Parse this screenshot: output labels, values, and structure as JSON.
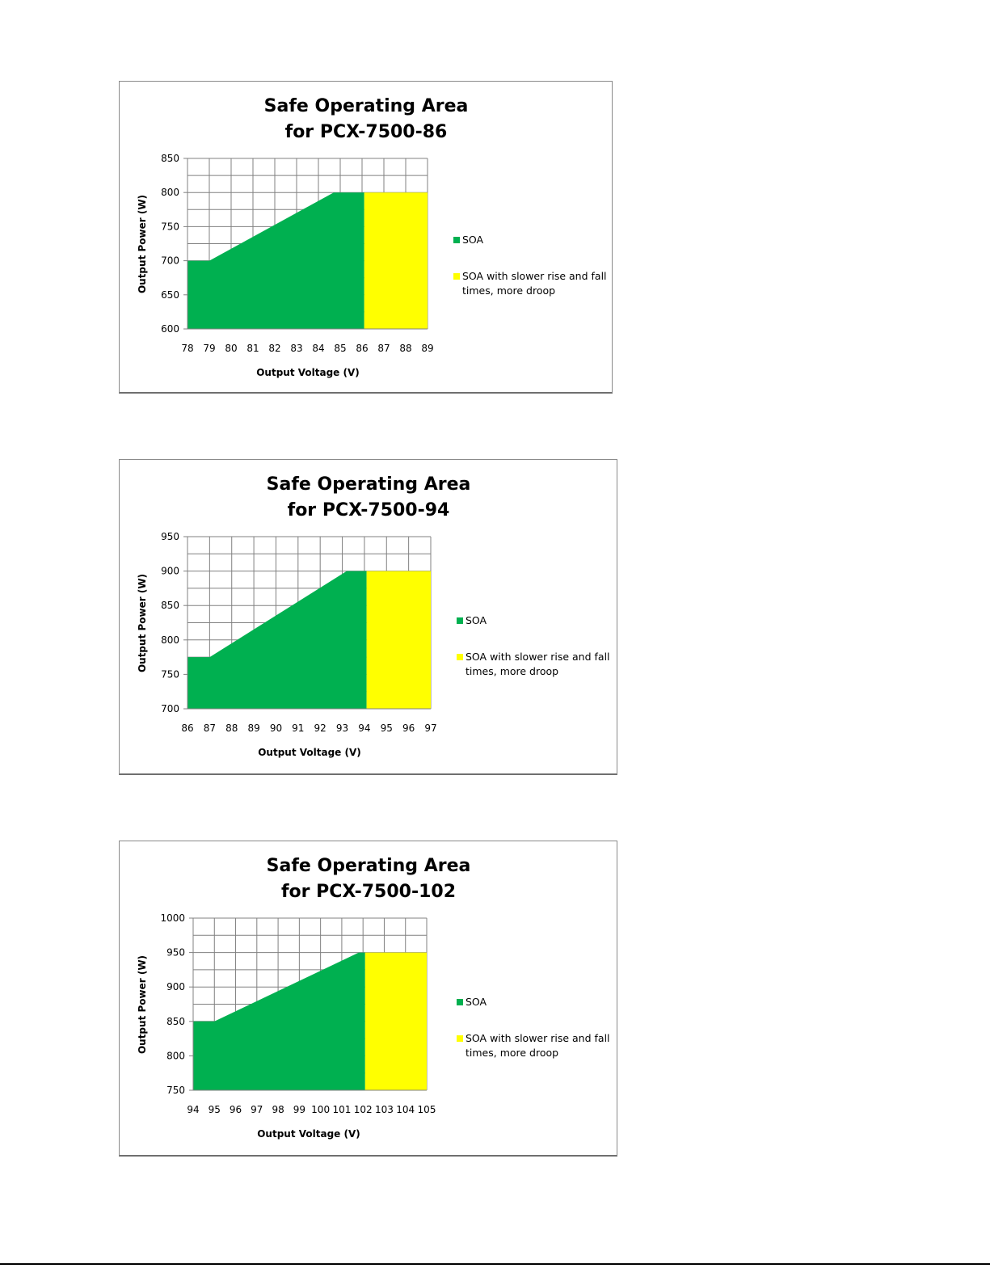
{
  "chart_data": [
    {
      "type": "area",
      "title": [
        "Safe Operating Area",
        "for PCX-7500-86"
      ],
      "xlabel": "Output Voltage  (V)",
      "ylabel": "Output Power  (W)",
      "xlim": [
        78,
        89
      ],
      "ylim": [
        600,
        850
      ],
      "xticks": [
        78,
        79,
        80,
        81,
        82,
        83,
        84,
        85,
        86,
        87,
        88,
        89
      ],
      "yticks": [
        600,
        650,
        700,
        750,
        800,
        850
      ],
      "grid": true,
      "legend_position": "right",
      "series": [
        {
          "name": "SOA",
          "color": "#00b050",
          "x": [
            78,
            79,
            84.7,
            86.1
          ],
          "y": [
            700,
            700,
            800,
            800
          ]
        },
        {
          "name": "SOA with slower rise and fall times, more droop",
          "color": "#ffff00",
          "x": [
            86.1,
            89
          ],
          "y": [
            800,
            800
          ]
        }
      ]
    },
    {
      "type": "area",
      "title": [
        "Safe Operating Area",
        "for PCX-7500-94"
      ],
      "xlabel": "Output Voltage  (V)",
      "ylabel": "Output Power  (W)",
      "xlim": [
        86,
        97
      ],
      "ylim": [
        700,
        950
      ],
      "xticks": [
        86,
        87,
        88,
        89,
        90,
        91,
        92,
        93,
        94,
        95,
        96,
        97
      ],
      "yticks": [
        700,
        750,
        800,
        850,
        900,
        950
      ],
      "grid": true,
      "legend_position": "right",
      "series": [
        {
          "name": "SOA",
          "color": "#00b050",
          "x": [
            86,
            87,
            93.2,
            94.1
          ],
          "y": [
            775,
            775,
            900,
            900
          ]
        },
        {
          "name": "SOA with slower rise and fall times, more droop",
          "color": "#ffff00",
          "x": [
            94.1,
            97
          ],
          "y": [
            900,
            900
          ]
        }
      ]
    },
    {
      "type": "area",
      "title": [
        "Safe Operating Area",
        "for PCX-7500-102"
      ],
      "xlabel": "Output Voltage  (V)",
      "ylabel": "Output Power  (W)",
      "xlim": [
        94,
        105
      ],
      "ylim": [
        750,
        1000
      ],
      "xticks": [
        94,
        95,
        96,
        97,
        98,
        99,
        100,
        101,
        102,
        103,
        104,
        105
      ],
      "yticks": [
        750,
        800,
        850,
        900,
        950,
        1000
      ],
      "grid": true,
      "legend_position": "right",
      "series": [
        {
          "name": "SOA",
          "color": "#00b050",
          "x": [
            94,
            95,
            101.8,
            102.1
          ],
          "y": [
            850,
            850,
            950,
            950
          ]
        },
        {
          "name": "SOA with slower rise and fall times, more droop",
          "color": "#ffff00",
          "x": [
            102.1,
            105
          ],
          "y": [
            950,
            950
          ]
        }
      ]
    }
  ]
}
